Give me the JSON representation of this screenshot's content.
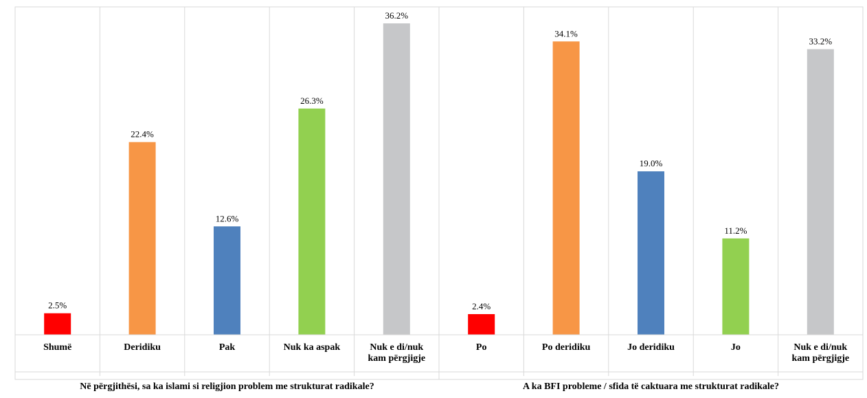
{
  "chart_data": {
    "type": "bar",
    "unit": "%",
    "ylim": [
      0,
      40
    ],
    "grid": "vertical separators between categories",
    "groups": [
      {
        "title": "Në përgjithësi, sa ka islami si religjion problem me strukturat radikale?",
        "categories": [
          [
            "Shumë"
          ],
          [
            "Deridiku"
          ],
          [
            "Pak"
          ],
          [
            "Nuk ka aspak"
          ],
          [
            "Nuk e di/nuk",
            "kam përgjigje"
          ]
        ],
        "values": [
          2.5,
          22.4,
          12.6,
          26.3,
          36.2
        ],
        "labels": [
          "2.5%",
          "22.4%",
          "12.6%",
          "26.3%",
          "36.2%"
        ]
      },
      {
        "title": "A ka BFI probleme / sfida të caktuara me strukturat radikale?",
        "categories": [
          [
            "Po"
          ],
          [
            "Po deridiku"
          ],
          [
            "Jo deridiku"
          ],
          [
            "Jo"
          ],
          [
            "Nuk e di/nuk",
            "kam përgjigje"
          ]
        ],
        "values": [
          2.4,
          34.1,
          19.0,
          11.2,
          33.2
        ],
        "labels": [
          "2.4%",
          "34.1%",
          "19.0%",
          "11.2%",
          "33.2%"
        ]
      }
    ],
    "colors": [
      "#ff0000",
      "#f79646",
      "#4f81bd",
      "#92d050",
      "#c6c7c9"
    ]
  }
}
